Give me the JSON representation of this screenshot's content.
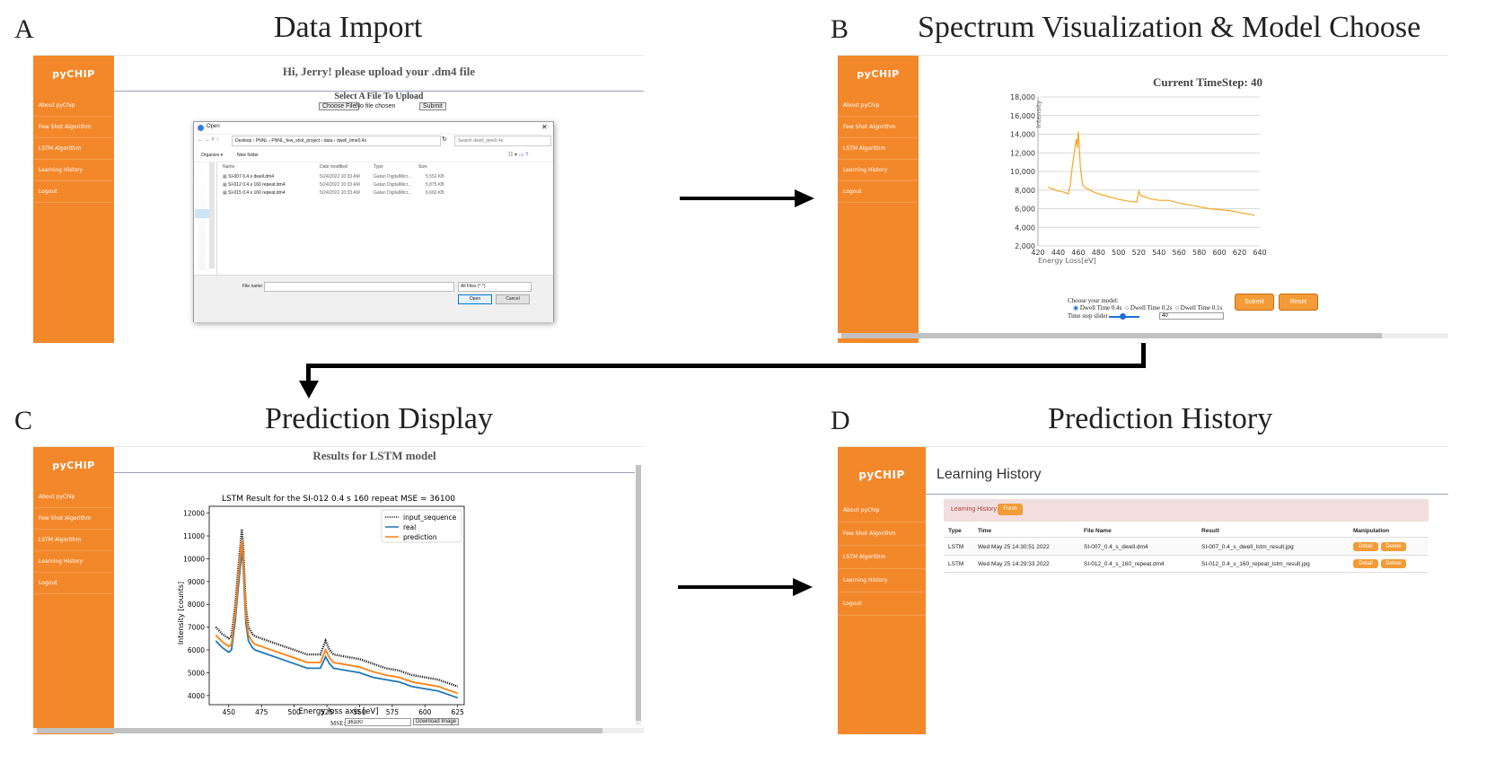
{
  "panels": {
    "a": {
      "letter": "A",
      "title": "Data Import",
      "brand": "pyCHIP",
      "nav": [
        "About pyChip",
        "Few Shot Algorithm",
        "LSTM Algorithm",
        "Learning History",
        "Logout"
      ],
      "greeting": "Hi, Jerry! please upload your .dm4 file",
      "select_label": "Select A File To Upload",
      "choose_file": "Choose File",
      "no_file": "No file chosen",
      "submit": "Submit",
      "dialog": {
        "title": "Open",
        "breadcrumb": [
          "Desktop",
          "PNNL",
          "PNNL_few_shot_project",
          "data",
          "dwell_time0.4s"
        ],
        "search_placeholder": "Search dwell_time0.4s",
        "organize": "Organize ▾",
        "new_folder": "New folder",
        "columns": [
          "Name",
          "Date modified",
          "Type",
          "Size"
        ],
        "files": [
          {
            "name": "SI-007 0.4 s dwell.dm4",
            "date": "5/24/2022 10:33 AM",
            "type": "Gatan DigitalMicr...",
            "size": "5,552 KB"
          },
          {
            "name": "SI-012 0.4 s 160 repeat.dm4",
            "date": "5/24/2022 10:33 AM",
            "type": "Gatan DigitalMicr...",
            "size": "5,875 KB"
          },
          {
            "name": "SI-015 0.4 s 160 repeat.dm4",
            "date": "5/24/2022 10:33 AM",
            "type": "Gatan DigitalMicr...",
            "size": "6,660 KB"
          }
        ],
        "file_name_label": "File name:",
        "filter": "All Files (*.*)",
        "open": "Open",
        "cancel": "Cancel"
      }
    },
    "b": {
      "letter": "B",
      "title": "Spectrum Visualization & Model Choose",
      "brand": "pyCHIP",
      "nav": [
        "About pyChip",
        "Few Shot Algorithm",
        "LSTM Algorithm",
        "Learning History",
        "Logout"
      ],
      "timestep_title": "Current TimeStep: 40",
      "ylabel": "Intensity",
      "xlabel": "Energy Loss[eV]",
      "choose_model": "Choose your model:",
      "models": [
        "Dwell Time 0.4s",
        "Dwell Time 0.2s",
        "Dwell Time 0.1s"
      ],
      "slider_label": "Time step slider",
      "slider_value": "40",
      "submit": "Submit",
      "reset": "Reset"
    },
    "c": {
      "letter": "C",
      "title": "Prediction Display",
      "brand": "pyCHIP",
      "nav": [
        "About pyChip",
        "Few Shot Algorithm",
        "LSTM Algorithm",
        "Learning History",
        "Logout"
      ],
      "heading": "Results for LSTM model",
      "mse_label": "MSE:",
      "mse_value": "36100",
      "download": "Download Image"
    },
    "d": {
      "letter": "D",
      "title": "Prediction History",
      "brand": "pyCHIP",
      "nav": [
        "About pyChip",
        "Few Shot Algorithm",
        "LSTM Algorithm",
        "Learning History",
        "Logout"
      ],
      "page_title": "Learning History",
      "bar_label": "Learning History",
      "fresh": "Fresh",
      "columns": [
        "Type",
        "Time",
        "File Name",
        "Result",
        "Manipulation"
      ],
      "rows": [
        {
          "type": "LSTM",
          "time": "Wed May 25 14:30:51 2022",
          "file": "SI-007_0.4_s_dwell.dm4",
          "result": "SI-007_0.4_s_dwell_lstm_result.jpg",
          "detail": "Detail",
          "delete": "Delete"
        },
        {
          "type": "LSTM",
          "time": "Wed May 25 14:29:33 2022",
          "file": "SI-012_0.4_s_160_repeat.dm4",
          "result": "SI-012_0.4_s_160_repeat_lstm_result.jpg",
          "detail": "Detail",
          "delete": "Delete"
        }
      ]
    }
  },
  "chart_data": [
    {
      "type": "line",
      "id": "timestep-spectrum",
      "title": "Current TimeStep: 40",
      "xlabel": "Energy Loss[eV]",
      "ylabel": "Intensity",
      "xlim": [
        420,
        640
      ],
      "ylim": [
        2000,
        18000
      ],
      "xticks": [
        420,
        440,
        460,
        480,
        500,
        520,
        540,
        560,
        580,
        600,
        620,
        640
      ],
      "yticks": [
        "2,000",
        "4,000",
        "6,000",
        "8,000",
        "10,000",
        "12,000",
        "14,000",
        "16,000",
        "18,000"
      ],
      "ytick_values": [
        2000,
        4000,
        6000,
        8000,
        10000,
        12000,
        14000,
        16000,
        18000
      ],
      "grid": "horizontal",
      "color": "#f5a623",
      "series": [
        {
          "x": [
            430,
            435,
            440,
            445,
            450,
            452,
            454,
            456,
            458,
            459,
            460,
            461,
            462,
            464,
            466,
            470,
            475,
            480,
            490,
            500,
            510,
            518,
            520,
            522,
            525,
            530,
            540,
            550,
            560,
            570,
            580,
            590,
            600,
            610,
            620,
            630,
            635
          ],
          "values": [
            8300,
            8100,
            7900,
            7800,
            7600,
            8500,
            10500,
            12000,
            13500,
            12500,
            14300,
            12800,
            10500,
            8700,
            8300,
            8100,
            7800,
            7600,
            7300,
            7000,
            6800,
            6700,
            7900,
            7400,
            7300,
            7100,
            6900,
            6900,
            6600,
            6400,
            6200,
            6000,
            5900,
            5800,
            5600,
            5400,
            5300
          ]
        }
      ]
    },
    {
      "type": "line",
      "id": "lstm-result",
      "title": "LSTM Result for the SI-012 0.4 s 160 repeat MSE = 36100",
      "xlabel": "Energy loss axis [eV]",
      "ylabel": "Intensity [counts]",
      "xlim": [
        435,
        630
      ],
      "ylim": [
        3600,
        12300
      ],
      "xticks": [
        450,
        475,
        500,
        525,
        550,
        575,
        600,
        625
      ],
      "yticks": [
        4000,
        5000,
        6000,
        7000,
        8000,
        9000,
        10000,
        11000,
        12000
      ],
      "legend": "top-right",
      "series": [
        {
          "name": "input_sequence",
          "color": "#222222",
          "style": "dotted",
          "x": [
            440,
            445,
            450,
            452,
            455,
            457,
            459,
            460,
            461,
            462,
            463,
            465,
            468,
            470,
            475,
            480,
            490,
            500,
            510,
            520,
            524,
            527,
            530,
            540,
            550,
            560,
            570,
            580,
            590,
            600,
            610,
            620,
            625
          ],
          "values": [
            7000,
            6700,
            6500,
            6600,
            8000,
            9400,
            10700,
            11300,
            10500,
            9200,
            7900,
            7000,
            6700,
            6600,
            6500,
            6400,
            6200,
            6000,
            5800,
            5800,
            6400,
            6000,
            5800,
            5700,
            5600,
            5400,
            5200,
            5100,
            4900,
            4800,
            4700,
            4500,
            4400
          ]
        },
        {
          "name": "real",
          "color": "#1f77b4",
          "style": "solid",
          "x": [
            440,
            445,
            450,
            452,
            455,
            457,
            459,
            460,
            461,
            462,
            463,
            465,
            468,
            470,
            475,
            480,
            490,
            500,
            510,
            520,
            524,
            527,
            530,
            540,
            550,
            560,
            570,
            580,
            590,
            600,
            610,
            620,
            625
          ],
          "values": [
            6400,
            6100,
            5900,
            6000,
            7300,
            8600,
            9800,
            10400,
            9600,
            8400,
            7200,
            6400,
            6100,
            6000,
            5900,
            5800,
            5600,
            5400,
            5200,
            5200,
            5700,
            5400,
            5200,
            5100,
            5000,
            4800,
            4700,
            4600,
            4400,
            4300,
            4200,
            4000,
            3900
          ]
        },
        {
          "name": "prediction",
          "color": "#ff7f0e",
          "style": "solid",
          "x": [
            440,
            445,
            450,
            452,
            455,
            457,
            459,
            460,
            461,
            462,
            463,
            465,
            468,
            470,
            475,
            480,
            490,
            500,
            510,
            520,
            524,
            527,
            530,
            540,
            550,
            560,
            570,
            580,
            590,
            600,
            610,
            620,
            625
          ],
          "values": [
            6650,
            6350,
            6150,
            6250,
            7600,
            8950,
            10200,
            10800,
            10000,
            8750,
            7500,
            6650,
            6350,
            6250,
            6150,
            6050,
            5850,
            5650,
            5450,
            5450,
            6000,
            5650,
            5450,
            5350,
            5250,
            5050,
            4900,
            4800,
            4600,
            4500,
            4400,
            4200,
            4100
          ]
        }
      ]
    }
  ]
}
